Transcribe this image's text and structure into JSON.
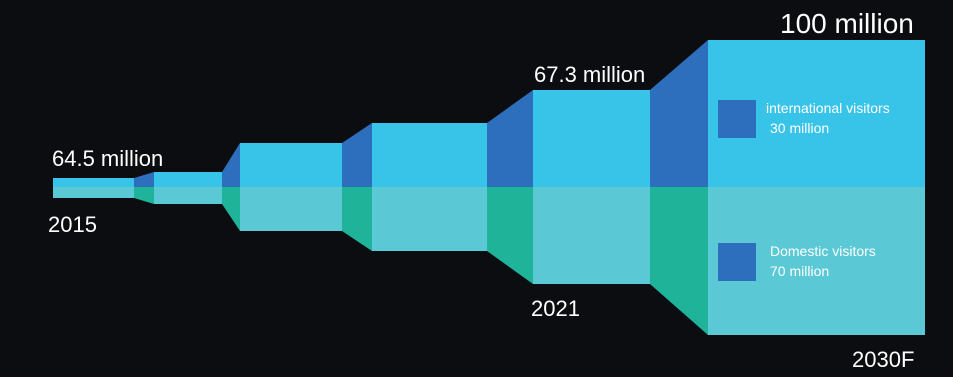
{
  "chart_data": {
    "type": "area",
    "series": [
      {
        "name": "Domestic visitors",
        "color": "#5bc8d6"
      },
      {
        "name": "international visitors",
        "color": "#38c4e8"
      }
    ],
    "points": [
      {
        "year": "2015",
        "total": 64.5,
        "label": "64.5 million"
      },
      {
        "year": "2021",
        "total": 67.3,
        "label": "67.3 million"
      },
      {
        "year": "2030F",
        "total": 100,
        "label": "100 million",
        "international": 30,
        "domestic": 70
      }
    ],
    "legend": [
      {
        "name": "international visitors",
        "value": "30 million"
      },
      {
        "name": "Domestic visitors",
        "value": "70 million"
      }
    ],
    "colors": {
      "background": "#0b0d10",
      "top_fill": "#38c4e8",
      "top_transition": "#2e6fbd",
      "bottom_fill": "#5bc8d6",
      "bottom_transition": "#1fb39a",
      "legend_marker": "#2e6fbd"
    }
  }
}
